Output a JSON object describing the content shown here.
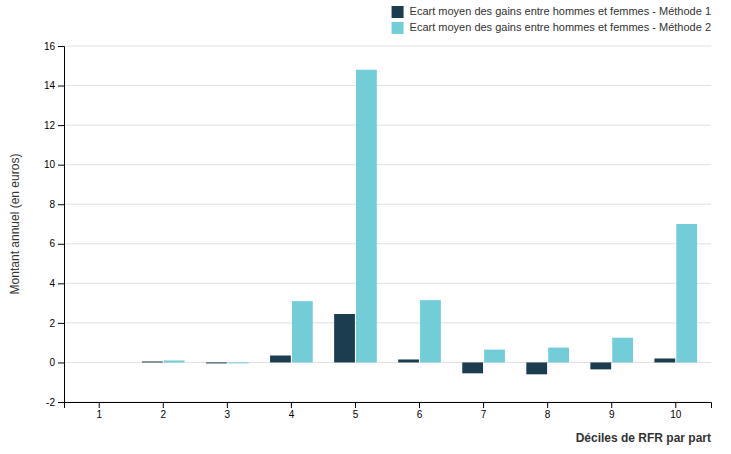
{
  "chart_data": {
    "type": "bar",
    "categories": [
      1,
      2,
      3,
      4,
      5,
      6,
      7,
      8,
      9,
      10
    ],
    "series": [
      {
        "name": "Ecart moyen des gains entre hommes et femmes - Méthode 1",
        "color": "#1c3d4f",
        "values": [
          0.0,
          0.05,
          -0.05,
          0.35,
          2.45,
          0.15,
          -0.55,
          -0.6,
          -0.35,
          0.2
        ]
      },
      {
        "name": "Ecart moyen des gains entre hommes et femmes - Méthode 2",
        "color": "#72cdd8",
        "values": [
          0.0,
          0.1,
          -0.05,
          3.1,
          14.8,
          3.15,
          0.65,
          0.75,
          1.25,
          7.0
        ]
      }
    ],
    "ylabel": "Montant annuel (en euros)",
    "xlabel": "Déciles de RFR par part",
    "ylim": [
      -2,
      16
    ],
    "yticks": [
      -2,
      0,
      2,
      4,
      6,
      8,
      10,
      12,
      14,
      16
    ],
    "grid": true,
    "legend": "upper right"
  }
}
